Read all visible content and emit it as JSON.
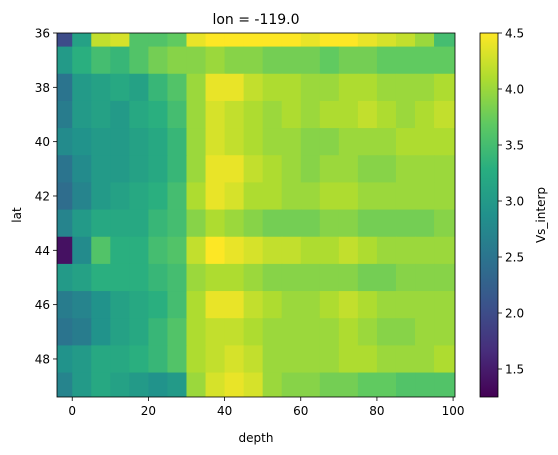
{
  "chart_data": {
    "type": "heatmap",
    "title": "lon = -119.0",
    "xlabel": "depth",
    "ylabel": "lat",
    "colorbar_label": "Vs_interp",
    "colormap": "viridis",
    "xlim": [
      -4,
      100.5
    ],
    "ylim": [
      36,
      49.4
    ],
    "y_inverted": true,
    "xticks": [
      0,
      20,
      40,
      60,
      80,
      100
    ],
    "yticks": [
      36,
      38,
      40,
      42,
      44,
      46,
      48
    ],
    "colorbar_range": [
      1.25,
      4.5
    ],
    "colorbar_ticks": [
      1.5,
      2.0,
      2.5,
      3.0,
      3.5,
      4.0,
      4.5
    ],
    "x": [
      -4,
      0,
      5,
      10,
      15,
      20,
      25,
      30,
      35,
      40,
      45,
      50,
      55,
      60,
      65,
      70,
      75,
      80,
      85,
      90,
      95,
      100.5
    ],
    "y": [
      36,
      36.5,
      37.5,
      38.5,
      39.5,
      40.5,
      41.5,
      42.5,
      43.5,
      44.5,
      45.5,
      46.5,
      47.5,
      48.5,
      49.4
    ],
    "z": [
      [
        2.0,
        3.1,
        4.2,
        4.3,
        3.6,
        3.6,
        3.7,
        4.4,
        4.5,
        4.5,
        4.5,
        4.5,
        4.5,
        4.4,
        4.5,
        4.5,
        4.4,
        4.3,
        4.2,
        4.0,
        3.5
      ],
      [
        3.0,
        3.3,
        3.5,
        3.4,
        3.6,
        3.8,
        3.9,
        3.9,
        4.0,
        3.9,
        3.9,
        3.8,
        3.8,
        3.8,
        3.7,
        3.8,
        3.8,
        3.7,
        3.7,
        3.7,
        3.7
      ],
      [
        2.5,
        3.0,
        3.1,
        3.2,
        3.1,
        3.4,
        3.6,
        4.0,
        4.4,
        4.4,
        4.2,
        4.1,
        4.1,
        4.0,
        4.0,
        4.1,
        4.1,
        4.0,
        4.0,
        4.0,
        4.1
      ],
      [
        2.6,
        3.0,
        3.1,
        3.0,
        3.2,
        3.3,
        3.5,
        4.0,
        4.3,
        4.2,
        4.1,
        4.0,
        4.1,
        4.0,
        4.1,
        4.1,
        4.2,
        4.1,
        4.0,
        4.1,
        4.2
      ],
      [
        2.8,
        2.9,
        3.0,
        3.0,
        3.1,
        3.2,
        3.4,
        4.0,
        4.3,
        4.2,
        4.1,
        4.0,
        4.0,
        3.9,
        3.9,
        4.0,
        4.0,
        4.0,
        4.1,
        4.1,
        4.1
      ],
      [
        2.5,
        2.8,
        3.0,
        3.0,
        3.1,
        3.2,
        3.4,
        4.0,
        4.4,
        4.4,
        4.2,
        4.1,
        4.0,
        3.9,
        4.0,
        4.0,
        3.9,
        3.9,
        4.0,
        4.0,
        4.0
      ],
      [
        2.4,
        2.7,
        3.0,
        3.1,
        3.2,
        3.3,
        3.5,
        4.1,
        4.4,
        4.3,
        4.1,
        4.1,
        4.0,
        4.0,
        4.1,
        4.1,
        4.0,
        4.0,
        4.0,
        4.0,
        4.0
      ],
      [
        2.7,
        3.0,
        3.2,
        3.2,
        3.2,
        3.4,
        3.5,
        3.9,
        4.1,
        4.0,
        3.9,
        3.8,
        3.8,
        3.8,
        3.9,
        3.9,
        3.8,
        3.8,
        3.8,
        3.8,
        3.9
      ],
      [
        1.4,
        2.8,
        3.6,
        3.3,
        3.3,
        3.5,
        3.6,
        4.2,
        4.5,
        4.4,
        4.3,
        4.2,
        4.2,
        4.1,
        4.1,
        4.2,
        4.1,
        4.0,
        4.0,
        4.0,
        4.0
      ],
      [
        3.0,
        3.1,
        3.3,
        3.3,
        3.3,
        3.4,
        3.5,
        4.0,
        4.1,
        4.1,
        4.0,
        3.9,
        3.9,
        3.9,
        3.9,
        3.9,
        3.8,
        3.8,
        3.9,
        3.9,
        3.9
      ],
      [
        2.6,
        2.7,
        2.9,
        3.1,
        3.2,
        3.3,
        3.5,
        4.1,
        4.4,
        4.4,
        4.2,
        4.1,
        4.0,
        4.0,
        4.1,
        4.2,
        4.1,
        4.0,
        4.0,
        4.0,
        4.0
      ],
      [
        2.5,
        2.6,
        2.9,
        3.1,
        3.2,
        3.4,
        3.6,
        4.1,
        4.2,
        4.2,
        4.1,
        4.0,
        4.0,
        4.0,
        4.0,
        4.1,
        4.0,
        3.9,
        3.9,
        4.0,
        4.0
      ],
      [
        2.9,
        3.0,
        3.2,
        3.2,
        3.3,
        3.4,
        3.6,
        4.1,
        4.2,
        4.3,
        4.2,
        4.0,
        4.0,
        4.0,
        4.0,
        4.1,
        4.1,
        4.0,
        4.0,
        4.0,
        4.1
      ],
      [
        2.7,
        3.0,
        3.2,
        3.1,
        3.0,
        2.9,
        3.0,
        4.0,
        4.3,
        4.4,
        4.3,
        4.0,
        3.9,
        3.9,
        3.8,
        3.8,
        3.7,
        3.7,
        3.6,
        3.6,
        3.6
      ]
    ]
  }
}
